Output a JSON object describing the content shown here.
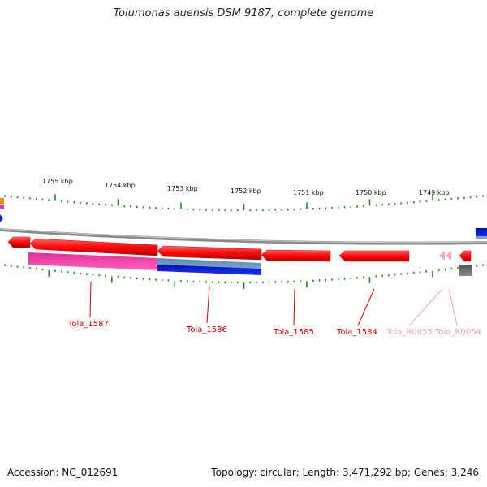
{
  "title": "Tolumonas auensis DSM 9187, complete genome",
  "footer": {
    "accession": "Accession: NC_012691",
    "topology": "Topology: circular; Length: 3,471,292 bp; Genes: 3,246"
  },
  "scale_labels": [
    "1755 kbp",
    "1754 kbp",
    "1753 kbp",
    "1752 kbp",
    "1751 kbp",
    "1750 kbp",
    "1749 kbp"
  ],
  "gene_labels": [
    {
      "text": "Tola_1587",
      "color": "#d00000"
    },
    {
      "text": "Tola_1586",
      "color": "#d00000"
    },
    {
      "text": "Tola_1585",
      "color": "#d00000"
    },
    {
      "text": "Tola_1584",
      "color": "#d00000"
    },
    {
      "text": "Tola_R0055",
      "color": "#f29ac4"
    },
    {
      "text": "Tola_R0054",
      "color": "#f29ac4"
    }
  ],
  "colors": {
    "gene": "#ff1010",
    "gene_dark": "#b00000",
    "rna": "#f7a3c8",
    "cds_magenta": "#ee3fa4",
    "cds_blue": "#0a1ad8",
    "tick_green": "#1f8a1f",
    "backbone": "#888888"
  }
}
